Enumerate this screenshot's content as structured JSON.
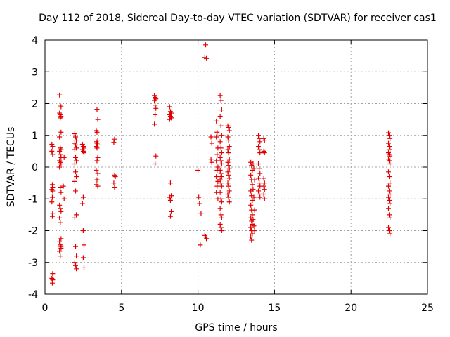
{
  "chart_data": {
    "type": "scatter",
    "title": "Day 112 of 2018, Sidereal Day-to-day VTEC variation (SDTVAR) for receiver cas1",
    "xlabel": "GPS time / hours",
    "ylabel": "SDTVAR / TECUs",
    "xlim": [
      0,
      25
    ],
    "ylim": [
      -4,
      4
    ],
    "xticks": [
      0,
      5,
      10,
      15,
      20,
      25
    ],
    "yticks": [
      -4,
      -3,
      -2,
      -1,
      0,
      1,
      2,
      3,
      4
    ],
    "xtick_labels": [
      "0",
      "5",
      "10",
      "15",
      "20",
      "25"
    ],
    "ytick_labels": [
      "-4",
      "-3",
      "-2",
      "-1",
      "0",
      "1",
      "2",
      "3",
      "4"
    ],
    "grid": true,
    "marker": "+",
    "color": "#e00000",
    "series": [
      {
        "name": "cas1",
        "points": [
          [
            0.45,
            0.72
          ],
          [
            0.5,
            0.65
          ],
          [
            0.45,
            0.5
          ],
          [
            0.5,
            0.4
          ],
          [
            0.48,
            -0.55
          ],
          [
            0.5,
            -0.65
          ],
          [
            0.45,
            -0.7
          ],
          [
            0.5,
            -0.75
          ],
          [
            0.48,
            -0.95
          ],
          [
            0.45,
            -1.1
          ],
          [
            0.5,
            -1.45
          ],
          [
            0.48,
            -1.55
          ],
          [
            0.5,
            -3.35
          ],
          [
            0.45,
            -3.5
          ],
          [
            0.5,
            -3.55
          ],
          [
            0.48,
            -3.65
          ],
          [
            0.95,
            2.27
          ],
          [
            1.0,
            1.95
          ],
          [
            1.05,
            1.9
          ],
          [
            0.95,
            1.7
          ],
          [
            1.0,
            1.65
          ],
          [
            1.05,
            1.6
          ],
          [
            1.0,
            1.55
          ],
          [
            1.05,
            1.1
          ],
          [
            0.95,
            0.95
          ],
          [
            1.0,
            0.6
          ],
          [
            1.05,
            0.55
          ],
          [
            0.95,
            0.5
          ],
          [
            1.0,
            0.4
          ],
          [
            1.05,
            0.3
          ],
          [
            0.95,
            0.2
          ],
          [
            1.0,
            0.15
          ],
          [
            1.05,
            0.1
          ],
          [
            0.95,
            0.0
          ],
          [
            1.0,
            -0.65
          ],
          [
            1.05,
            -0.8
          ],
          [
            0.95,
            -1.2
          ],
          [
            1.0,
            -1.3
          ],
          [
            1.05,
            -1.4
          ],
          [
            0.95,
            -1.6
          ],
          [
            1.0,
            -1.75
          ],
          [
            1.05,
            -2.25
          ],
          [
            0.95,
            -2.35
          ],
          [
            1.0,
            -2.45
          ],
          [
            1.05,
            -2.55
          ],
          [
            0.95,
            -2.65
          ],
          [
            1.0,
            -2.8
          ],
          [
            1.05,
            -2.5
          ],
          [
            1.25,
            0.3
          ],
          [
            1.2,
            -0.6
          ],
          [
            1.25,
            -1.0
          ],
          [
            1.95,
            1.05
          ],
          [
            2.0,
            0.95
          ],
          [
            2.05,
            0.85
          ],
          [
            1.95,
            0.75
          ],
          [
            2.0,
            0.7
          ],
          [
            2.05,
            0.6
          ],
          [
            1.95,
            0.55
          ],
          [
            2.0,
            0.3
          ],
          [
            2.05,
            0.2
          ],
          [
            1.95,
            0.1
          ],
          [
            2.0,
            -0.15
          ],
          [
            2.05,
            -0.3
          ],
          [
            1.95,
            -0.45
          ],
          [
            2.0,
            -0.75
          ],
          [
            2.05,
            -1.5
          ],
          [
            1.95,
            -1.6
          ],
          [
            2.0,
            -2.5
          ],
          [
            2.05,
            -2.8
          ],
          [
            1.95,
            -3.0
          ],
          [
            2.0,
            -3.1
          ],
          [
            2.05,
            -3.2
          ],
          [
            2.45,
            0.72
          ],
          [
            2.5,
            0.65
          ],
          [
            2.55,
            0.6
          ],
          [
            2.45,
            0.55
          ],
          [
            2.5,
            0.5
          ],
          [
            2.55,
            0.45
          ],
          [
            2.5,
            -0.95
          ],
          [
            2.45,
            -1.15
          ],
          [
            2.5,
            -2.0
          ],
          [
            2.55,
            -2.45
          ],
          [
            2.5,
            -2.85
          ],
          [
            2.55,
            -3.15
          ],
          [
            3.4,
            1.82
          ],
          [
            3.45,
            1.5
          ],
          [
            3.35,
            1.15
          ],
          [
            3.4,
            1.1
          ],
          [
            3.45,
            0.85
          ],
          [
            3.35,
            0.8
          ],
          [
            3.4,
            0.75
          ],
          [
            3.45,
            0.7
          ],
          [
            3.35,
            0.65
          ],
          [
            3.4,
            0.6
          ],
          [
            3.45,
            0.3
          ],
          [
            3.4,
            0.2
          ],
          [
            3.35,
            -0.1
          ],
          [
            3.45,
            -0.2
          ],
          [
            3.4,
            -0.4
          ],
          [
            3.35,
            -0.55
          ],
          [
            3.45,
            -0.6
          ],
          [
            4.55,
            0.88
          ],
          [
            4.5,
            0.78
          ],
          [
            4.55,
            -0.25
          ],
          [
            4.6,
            -0.3
          ],
          [
            4.5,
            -0.5
          ],
          [
            4.55,
            -0.65
          ],
          [
            7.15,
            2.25
          ],
          [
            7.2,
            2.2
          ],
          [
            7.25,
            2.15
          ],
          [
            7.15,
            2.1
          ],
          [
            7.2,
            1.95
          ],
          [
            7.25,
            1.85
          ],
          [
            7.2,
            1.65
          ],
          [
            7.15,
            1.35
          ],
          [
            7.25,
            0.35
          ],
          [
            7.2,
            0.1
          ],
          [
            8.15,
            1.9
          ],
          [
            8.2,
            1.75
          ],
          [
            8.25,
            1.7
          ],
          [
            8.15,
            1.65
          ],
          [
            8.2,
            1.6
          ],
          [
            8.25,
            1.55
          ],
          [
            8.15,
            1.5
          ],
          [
            8.2,
            -0.5
          ],
          [
            8.25,
            -0.9
          ],
          [
            8.15,
            -0.95
          ],
          [
            8.2,
            -1.05
          ],
          [
            8.25,
            -1.4
          ],
          [
            8.2,
            -1.55
          ],
          [
            10.5,
            3.85
          ],
          [
            10.45,
            3.45
          ],
          [
            10.55,
            3.42
          ],
          [
            10.0,
            -0.1
          ],
          [
            10.05,
            -0.95
          ],
          [
            10.1,
            -1.15
          ],
          [
            10.2,
            -1.45
          ],
          [
            10.15,
            -2.45
          ],
          [
            10.45,
            -2.15
          ],
          [
            10.5,
            -2.2
          ],
          [
            10.55,
            -2.25
          ],
          [
            10.85,
            0.95
          ],
          [
            10.9,
            0.75
          ],
          [
            10.85,
            0.25
          ],
          [
            10.9,
            0.15
          ],
          [
            11.2,
            1.45
          ],
          [
            11.25,
            1.1
          ],
          [
            11.2,
            0.95
          ],
          [
            11.3,
            0.6
          ],
          [
            11.25,
            0.4
          ],
          [
            11.2,
            0.2
          ],
          [
            11.3,
            0.0
          ],
          [
            11.25,
            -0.1
          ],
          [
            11.2,
            -0.3
          ],
          [
            11.3,
            -0.45
          ],
          [
            11.25,
            -0.6
          ],
          [
            11.2,
            -0.8
          ],
          [
            11.3,
            -1.0
          ],
          [
            11.45,
            2.25
          ],
          [
            11.5,
            2.1
          ],
          [
            11.55,
            1.8
          ],
          [
            11.45,
            1.6
          ],
          [
            11.5,
            1.3
          ],
          [
            11.55,
            1.0
          ],
          [
            11.45,
            0.8
          ],
          [
            11.5,
            0.6
          ],
          [
            11.55,
            0.45
          ],
          [
            11.45,
            0.3
          ],
          [
            11.5,
            0.2
          ],
          [
            11.55,
            0.1
          ],
          [
            11.45,
            -0.1
          ],
          [
            11.5,
            -0.2
          ],
          [
            11.55,
            -0.3
          ],
          [
            11.45,
            -0.4
          ],
          [
            11.5,
            -0.5
          ],
          [
            11.55,
            -0.6
          ],
          [
            11.45,
            -0.8
          ],
          [
            11.5,
            -1.0
          ],
          [
            11.55,
            -1.1
          ],
          [
            11.45,
            -1.3
          ],
          [
            11.5,
            -1.5
          ],
          [
            11.55,
            -1.6
          ],
          [
            11.45,
            -1.8
          ],
          [
            11.5,
            -1.9
          ],
          [
            11.55,
            -2.0
          ],
          [
            11.95,
            1.3
          ],
          [
            12.0,
            1.25
          ],
          [
            12.05,
            1.15
          ],
          [
            11.95,
            0.95
          ],
          [
            12.0,
            0.85
          ],
          [
            12.05,
            0.65
          ],
          [
            11.95,
            0.55
          ],
          [
            12.0,
            0.45
          ],
          [
            12.05,
            0.25
          ],
          [
            11.95,
            0.15
          ],
          [
            12.0,
            0.05
          ],
          [
            12.05,
            -0.05
          ],
          [
            11.95,
            -0.15
          ],
          [
            12.0,
            -0.25
          ],
          [
            12.05,
            -0.35
          ],
          [
            11.95,
            -0.5
          ],
          [
            12.0,
            -0.6
          ],
          [
            12.05,
            -0.75
          ],
          [
            11.95,
            -0.85
          ],
          [
            12.0,
            -0.95
          ],
          [
            12.05,
            -1.1
          ],
          [
            13.45,
            0.15
          ],
          [
            13.5,
            0.05
          ],
          [
            13.55,
            -0.1
          ],
          [
            13.45,
            -0.25
          ],
          [
            13.5,
            -0.4
          ],
          [
            13.55,
            -0.55
          ],
          [
            13.45,
            -0.75
          ],
          [
            13.5,
            -0.9
          ],
          [
            13.55,
            -1.05
          ],
          [
            13.45,
            -1.2
          ],
          [
            13.5,
            -1.35
          ],
          [
            13.55,
            -1.5
          ],
          [
            13.45,
            -1.6
          ],
          [
            13.5,
            -1.7
          ],
          [
            13.55,
            -1.8
          ],
          [
            13.45,
            -1.9
          ],
          [
            13.5,
            -2.0
          ],
          [
            13.55,
            -2.1
          ],
          [
            13.45,
            -2.2
          ],
          [
            13.5,
            -2.3
          ],
          [
            13.6,
            0.1
          ],
          [
            13.65,
            -0.05
          ],
          [
            13.7,
            -0.4
          ],
          [
            13.6,
            -0.7
          ],
          [
            13.65,
            -0.95
          ],
          [
            13.7,
            -1.35
          ],
          [
            13.6,
            -1.65
          ],
          [
            13.65,
            -1.85
          ],
          [
            13.7,
            -2.0
          ],
          [
            13.95,
            1.0
          ],
          [
            14.0,
            0.9
          ],
          [
            14.05,
            0.8
          ],
          [
            13.95,
            0.65
          ],
          [
            14.0,
            0.55
          ],
          [
            14.05,
            0.45
          ],
          [
            13.95,
            0.1
          ],
          [
            14.0,
            -0.05
          ],
          [
            14.05,
            -0.2
          ],
          [
            13.95,
            -0.35
          ],
          [
            14.0,
            -0.5
          ],
          [
            14.05,
            -0.6
          ],
          [
            13.95,
            -0.75
          ],
          [
            14.0,
            -0.85
          ],
          [
            14.05,
            -0.95
          ],
          [
            14.3,
            0.9
          ],
          [
            14.35,
            0.85
          ],
          [
            14.3,
            0.5
          ],
          [
            14.35,
            0.45
          ],
          [
            14.3,
            -0.35
          ],
          [
            14.35,
            -0.5
          ],
          [
            14.3,
            -0.6
          ],
          [
            14.35,
            -0.7
          ],
          [
            14.3,
            -0.85
          ],
          [
            14.35,
            -1.0
          ],
          [
            22.45,
            1.08
          ],
          [
            22.5,
            1.0
          ],
          [
            22.55,
            0.9
          ],
          [
            22.45,
            0.75
          ],
          [
            22.5,
            0.65
          ],
          [
            22.55,
            0.55
          ],
          [
            22.45,
            0.45
          ],
          [
            22.5,
            0.4
          ],
          [
            22.55,
            0.35
          ],
          [
            22.45,
            0.25
          ],
          [
            22.5,
            0.2
          ],
          [
            22.55,
            0.1
          ],
          [
            22.45,
            -0.15
          ],
          [
            22.5,
            -0.3
          ],
          [
            22.55,
            -0.5
          ],
          [
            22.45,
            -0.6
          ],
          [
            22.5,
            -0.75
          ],
          [
            22.55,
            -0.85
          ],
          [
            22.45,
            -0.95
          ],
          [
            22.5,
            -1.05
          ],
          [
            22.55,
            -1.15
          ],
          [
            22.45,
            -1.3
          ],
          [
            22.5,
            -1.5
          ],
          [
            22.55,
            -1.6
          ],
          [
            22.45,
            -1.9
          ],
          [
            22.5,
            -2.0
          ],
          [
            22.55,
            -2.1
          ]
        ]
      }
    ]
  }
}
